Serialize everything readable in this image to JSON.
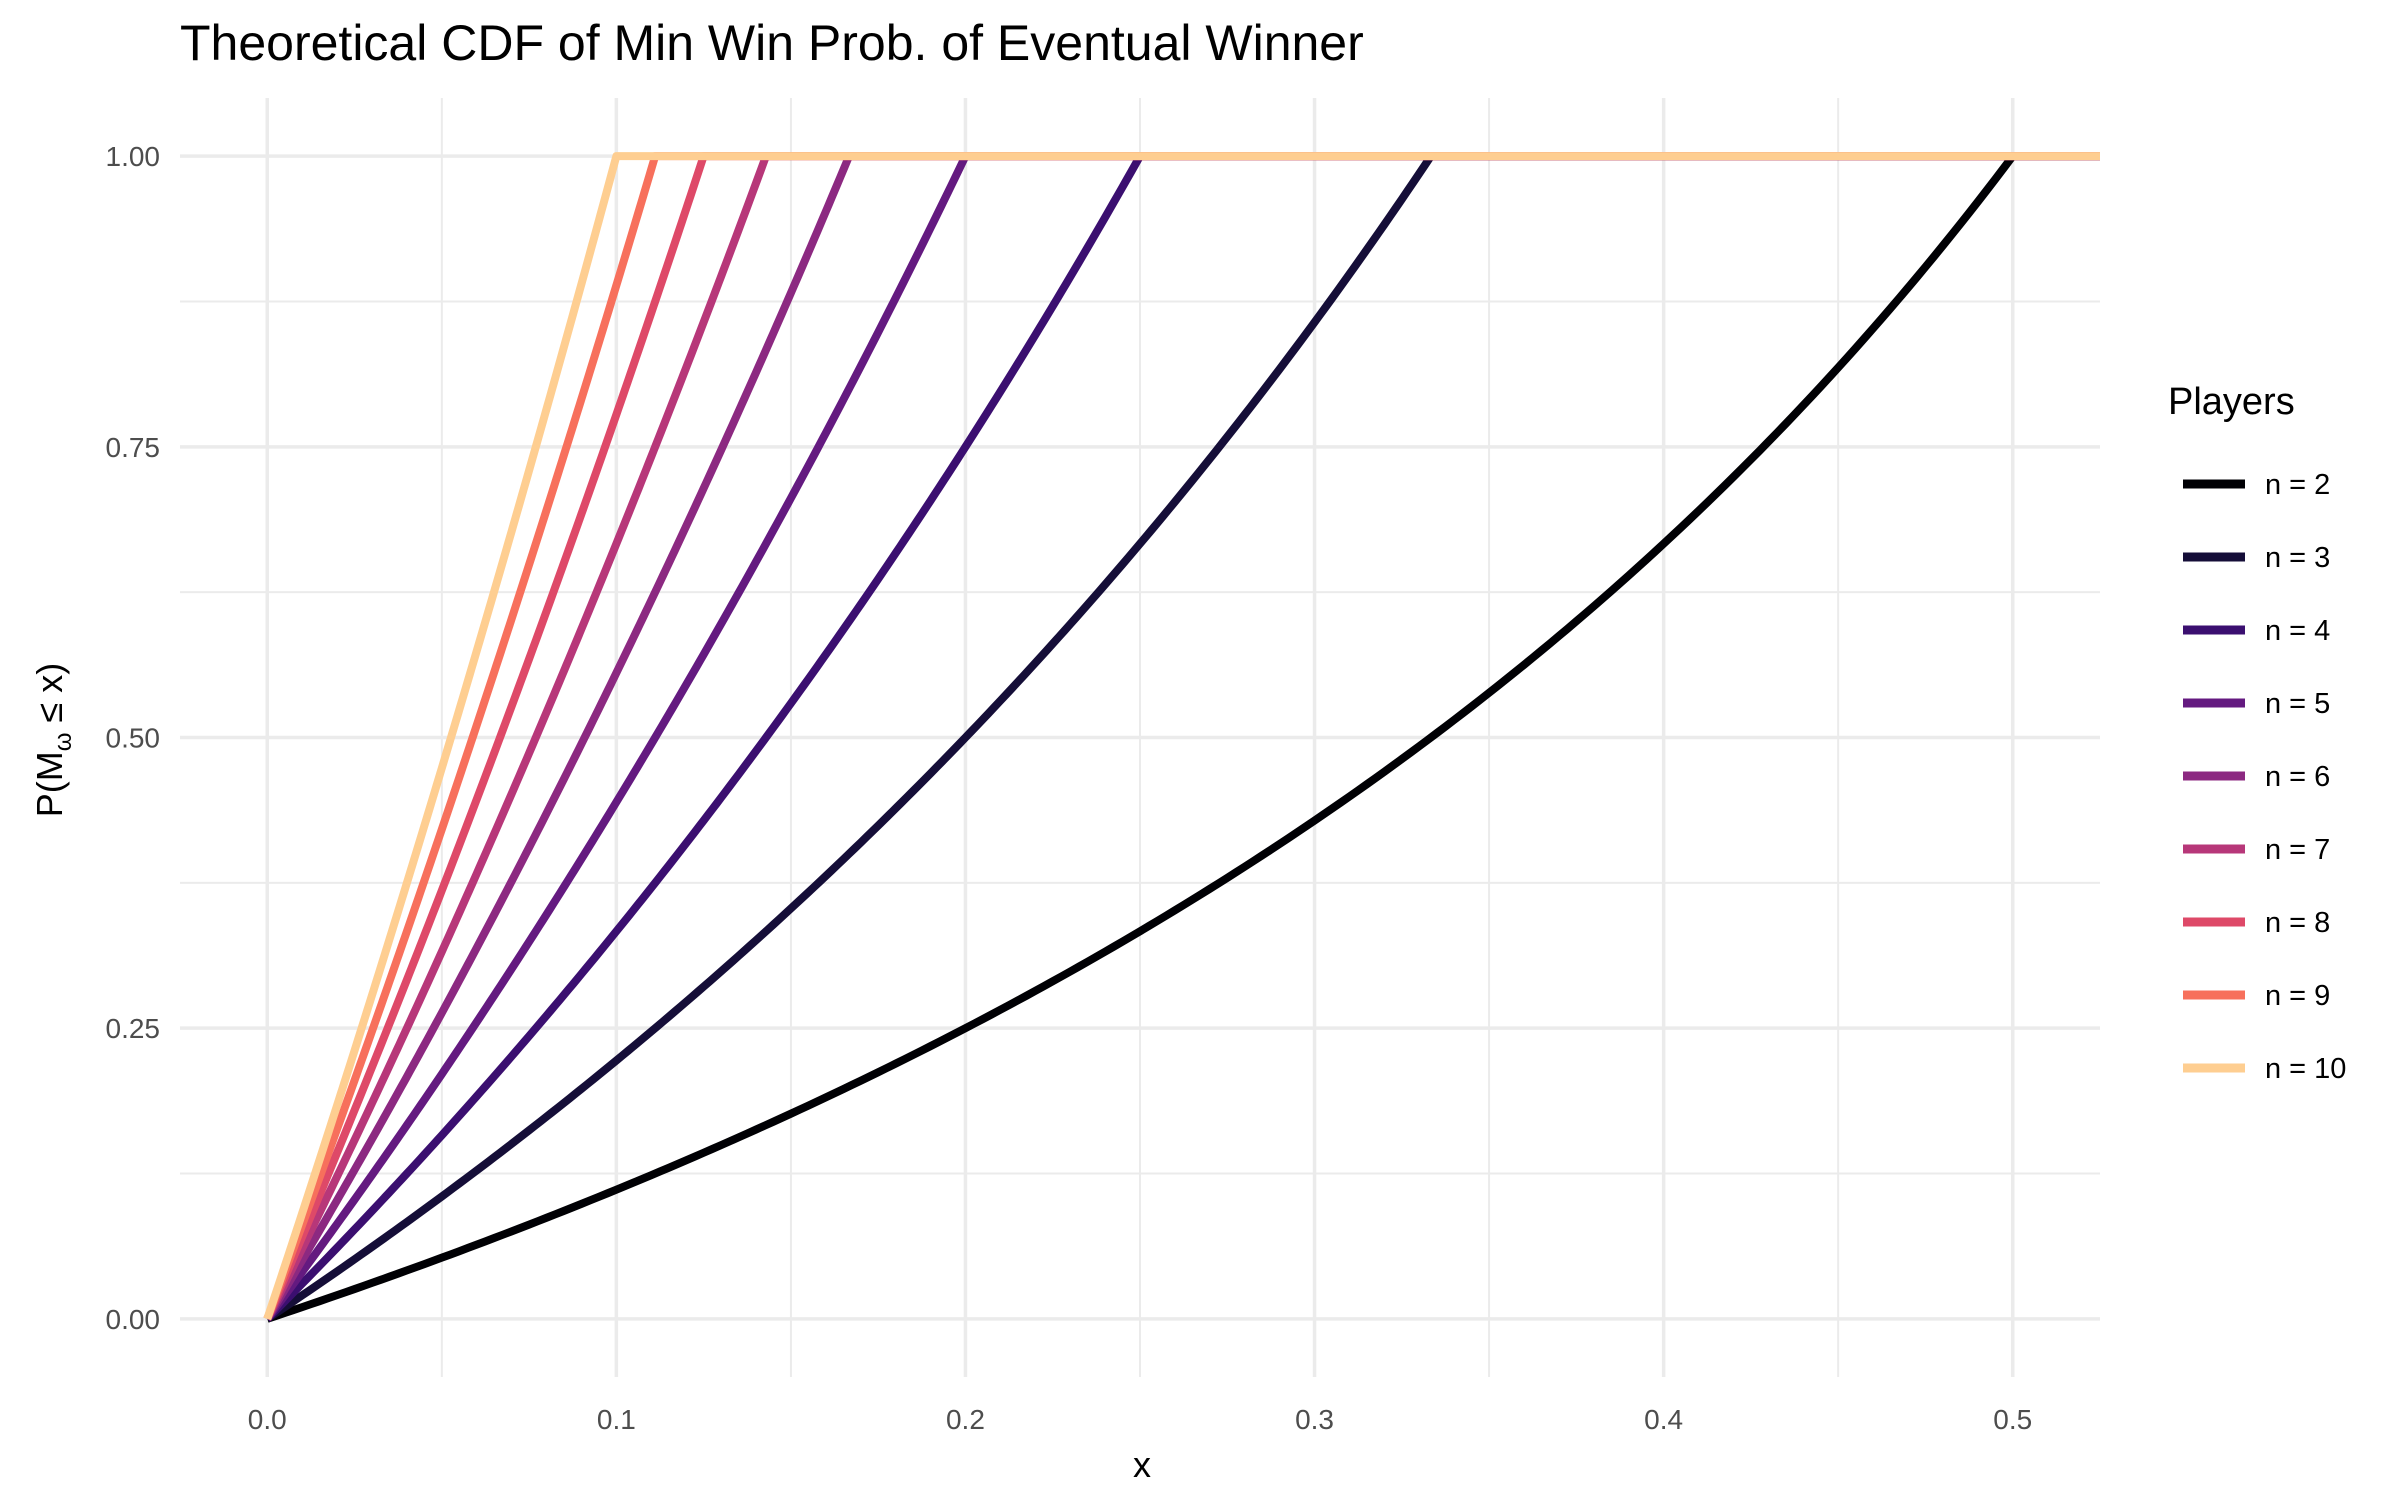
{
  "chart_data": {
    "type": "line",
    "title": "Theoretical CDF of Min Win Prob. of Eventual Winner",
    "xlabel": "x",
    "ylabel_main": "P(M",
    "ylabel_sub": "ω",
    "ylabel_rest": " ≤ x)",
    "xlim": [
      -0.025,
      0.525
    ],
    "ylim": [
      -0.05,
      1.05
    ],
    "x_ticks": [
      0.0,
      0.1,
      0.2,
      0.3,
      0.4,
      0.5
    ],
    "x_tick_labels": [
      "0.0",
      "0.1",
      "0.2",
      "0.3",
      "0.4",
      "0.5"
    ],
    "y_ticks": [
      0.0,
      0.25,
      0.5,
      0.75,
      1.0
    ],
    "y_tick_labels": [
      "0.00",
      "0.25",
      "0.50",
      "0.75",
      "1.00"
    ],
    "grid": true,
    "legend": {
      "title": "Players",
      "position": "right"
    },
    "series": [
      {
        "name": "n = 2",
        "n": 2,
        "color": "#000004"
      },
      {
        "name": "n = 3",
        "n": 3,
        "color": "#150E38"
      },
      {
        "name": "n = 4",
        "n": 4,
        "color": "#3B0F70"
      },
      {
        "name": "n = 5",
        "n": 5,
        "color": "#641A80"
      },
      {
        "name": "n = 6",
        "n": 6,
        "color": "#8C2981"
      },
      {
        "name": "n = 7",
        "n": 7,
        "color": "#B73779"
      },
      {
        "name": "n = 8",
        "n": 8,
        "color": "#DE4968"
      },
      {
        "name": "n = 9",
        "n": 9,
        "color": "#F7705C"
      },
      {
        "name": "n = 10",
        "n": 10,
        "color": "#FECE91"
      }
    ]
  }
}
